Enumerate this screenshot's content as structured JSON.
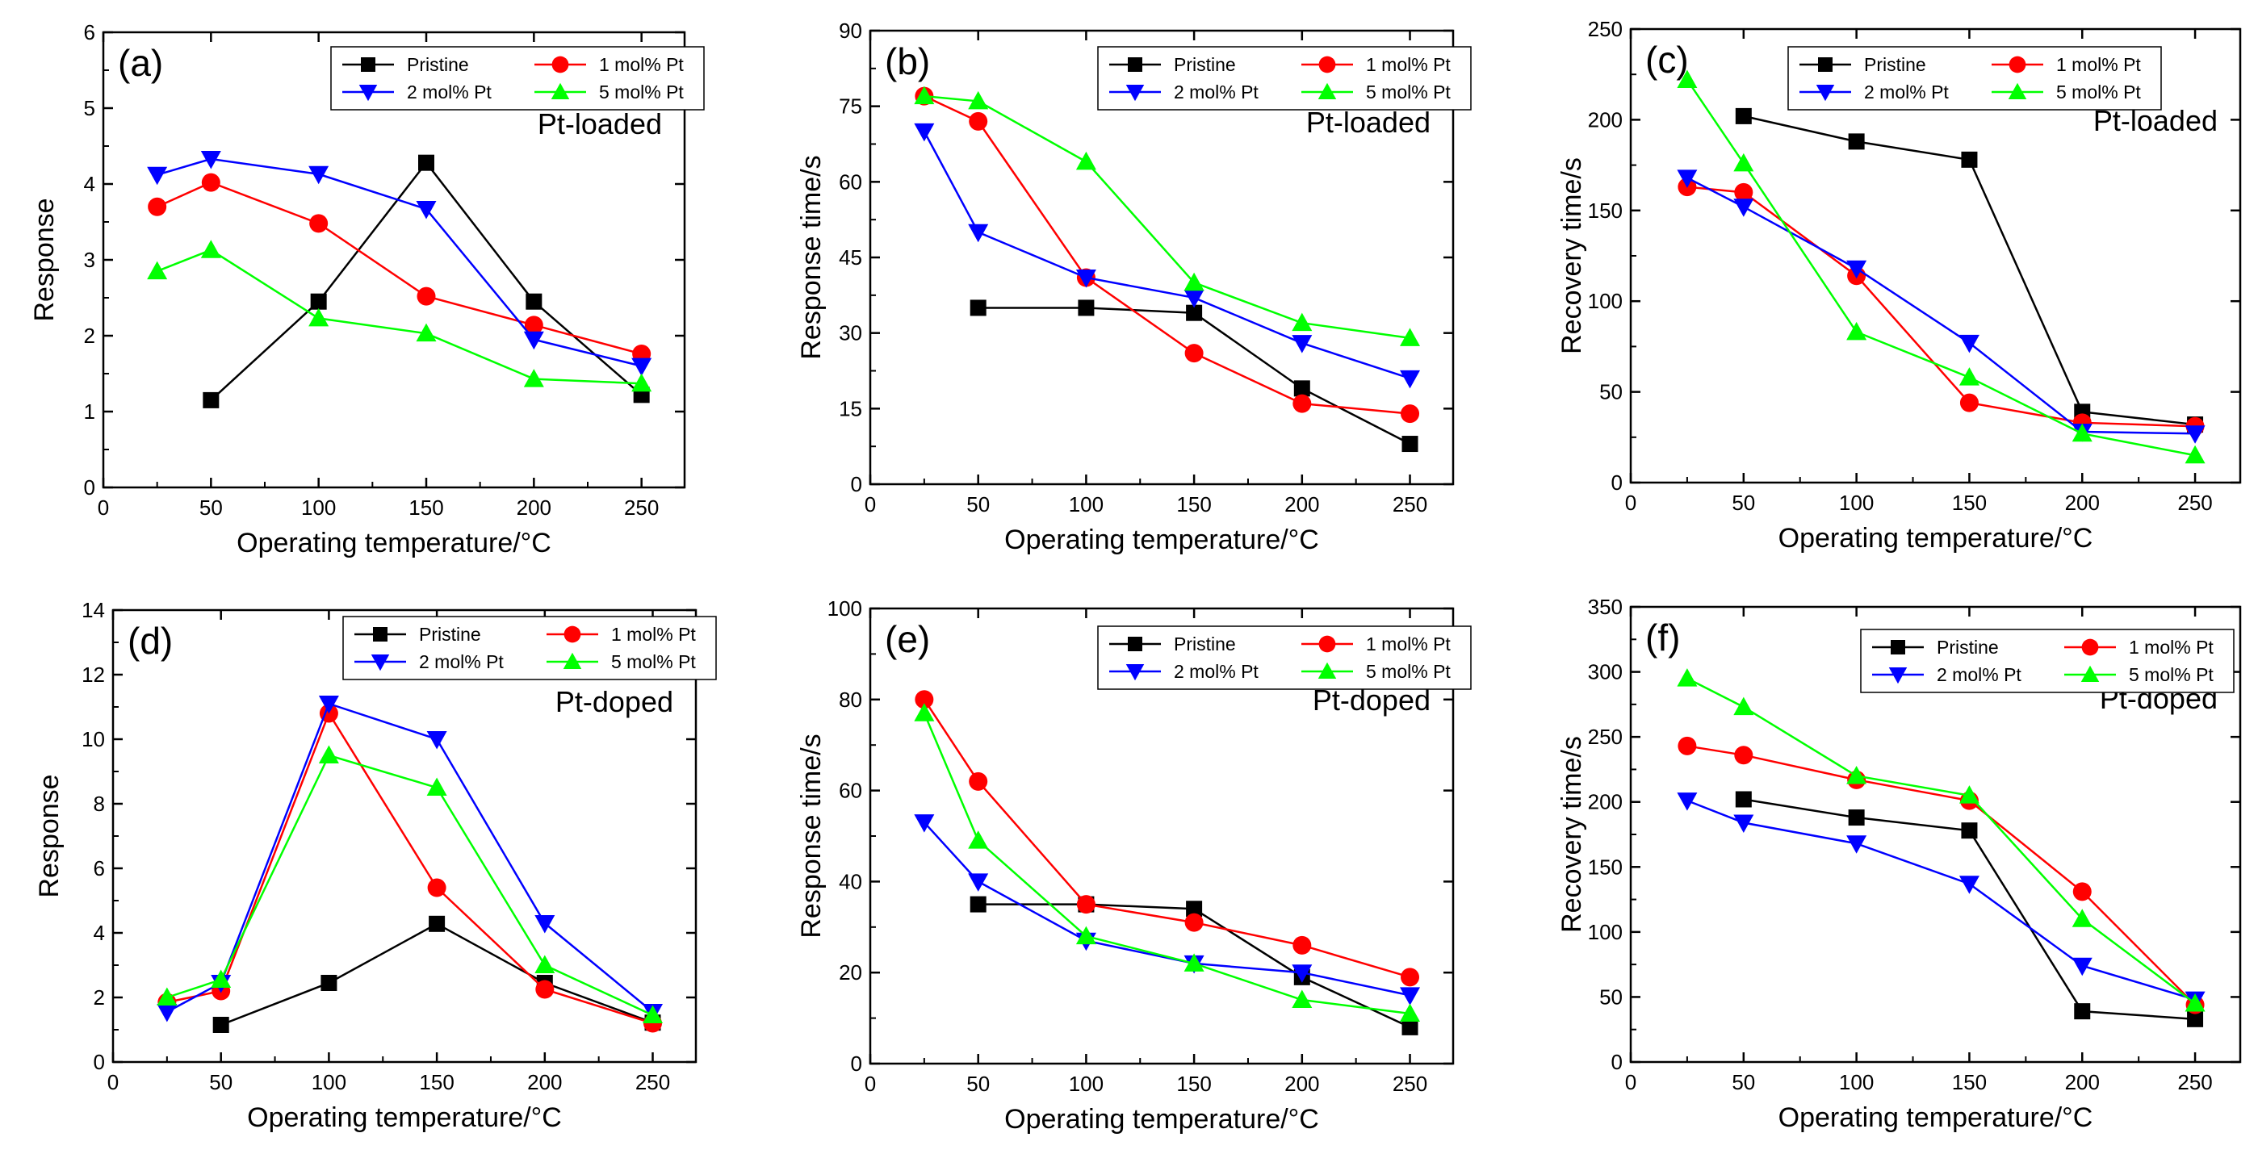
{
  "chart_data": [
    {
      "type": "line",
      "panel_label": "(a)",
      "annotation": "Pt-loaded",
      "xlabel": "Operating temperature/°C",
      "ylabel": "Response",
      "xlim": [
        0,
        270
      ],
      "ylim": [
        0,
        6
      ],
      "xticks": [
        0,
        50,
        100,
        150,
        200,
        250
      ],
      "yticks": [
        0,
        1,
        2,
        3,
        4,
        5,
        6
      ],
      "series": [
        {
          "name": "Pristine",
          "color": "#000000",
          "marker": "square",
          "x": [
            50,
            100,
            150,
            200,
            250
          ],
          "y": [
            1.15,
            2.45,
            4.28,
            2.45,
            1.22
          ]
        },
        {
          "name": "1 mol% Pt",
          "color": "#ff0000",
          "marker": "circle",
          "x": [
            25,
            50,
            100,
            150,
            200,
            250
          ],
          "y": [
            3.7,
            4.02,
            3.48,
            2.52,
            2.14,
            1.76
          ]
        },
        {
          "name": "2 mol% Pt",
          "color": "#0000ff",
          "marker": "triangle-down",
          "x": [
            25,
            50,
            100,
            150,
            200,
            250
          ],
          "y": [
            4.12,
            4.33,
            4.13,
            3.67,
            1.95,
            1.6
          ]
        },
        {
          "name": "5 mol% Pt",
          "color": "#00ff00",
          "marker": "triangle-up",
          "x": [
            25,
            50,
            100,
            150,
            200,
            250
          ],
          "y": [
            2.85,
            3.13,
            2.23,
            2.03,
            1.43,
            1.37
          ]
        }
      ]
    },
    {
      "type": "line",
      "panel_label": "(b)",
      "annotation": "Pt-loaded",
      "xlabel": "Operating temperature/°C",
      "ylabel": "Response time/s",
      "xlim": [
        0,
        270
      ],
      "ylim": [
        0,
        90
      ],
      "xticks": [
        0,
        50,
        100,
        150,
        200,
        250
      ],
      "yticks": [
        0,
        15,
        30,
        45,
        60,
        75,
        90
      ],
      "series": [
        {
          "name": "Pristine",
          "color": "#000000",
          "marker": "square",
          "x": [
            50,
            100,
            150,
            200,
            250
          ],
          "y": [
            35,
            35,
            34,
            19,
            8
          ]
        },
        {
          "name": "1 mol% Pt",
          "color": "#ff0000",
          "marker": "circle",
          "x": [
            25,
            50,
            100,
            150,
            200,
            250
          ],
          "y": [
            77,
            72,
            41,
            26,
            16,
            14
          ]
        },
        {
          "name": "2 mol% Pt",
          "color": "#0000ff",
          "marker": "triangle-down",
          "x": [
            25,
            50,
            100,
            150,
            200,
            250
          ],
          "y": [
            70,
            50,
            41,
            37,
            28,
            21
          ]
        },
        {
          "name": "5 mol% Pt",
          "color": "#00ff00",
          "marker": "triangle-up",
          "x": [
            25,
            50,
            100,
            150,
            200,
            250
          ],
          "y": [
            77,
            76,
            64,
            40,
            32,
            29
          ]
        }
      ]
    },
    {
      "type": "line",
      "panel_label": "(c)",
      "annotation": "Pt-loaded",
      "xlabel": "Operating temperature/°C",
      "ylabel": "Recovery time/s",
      "xlim": [
        0,
        270
      ],
      "ylim": [
        0,
        250
      ],
      "xticks": [
        0,
        50,
        100,
        150,
        200,
        250
      ],
      "yticks": [
        0,
        50,
        100,
        150,
        200,
        250
      ],
      "series": [
        {
          "name": "Pristine",
          "color": "#000000",
          "marker": "square",
          "x": [
            50,
            100,
            150,
            200,
            250
          ],
          "y": [
            202,
            188,
            178,
            39,
            32
          ]
        },
        {
          "name": "1 mol% Pt",
          "color": "#ff0000",
          "marker": "circle",
          "x": [
            25,
            50,
            100,
            150,
            200,
            250
          ],
          "y": [
            163,
            160,
            114,
            44,
            33,
            31
          ]
        },
        {
          "name": "2 mol% Pt",
          "color": "#0000ff",
          "marker": "triangle-down",
          "x": [
            25,
            50,
            100,
            150,
            200,
            250
          ],
          "y": [
            168,
            152,
            118,
            77,
            28,
            27
          ]
        },
        {
          "name": "5 mol% Pt",
          "color": "#00ff00",
          "marker": "triangle-up",
          "x": [
            25,
            50,
            100,
            150,
            200,
            250
          ],
          "y": [
            222,
            176,
            83,
            58,
            27,
            15
          ]
        }
      ]
    },
    {
      "type": "line",
      "panel_label": "(d)",
      "annotation": "Pt-doped",
      "xlabel": "Operating temperature/°C",
      "ylabel": "Response",
      "xlim": [
        0,
        270
      ],
      "ylim": [
        0,
        14
      ],
      "xticks": [
        0,
        50,
        100,
        150,
        200,
        250
      ],
      "yticks": [
        0,
        2,
        4,
        6,
        8,
        10,
        12,
        14
      ],
      "series": [
        {
          "name": "Pristine",
          "color": "#000000",
          "marker": "square",
          "x": [
            50,
            100,
            150,
            200,
            250
          ],
          "y": [
            1.15,
            2.45,
            4.28,
            2.45,
            1.22
          ]
        },
        {
          "name": "1 mol% Pt",
          "color": "#ff0000",
          "marker": "circle",
          "x": [
            25,
            50,
            100,
            150,
            200,
            250
          ],
          "y": [
            1.85,
            2.2,
            10.8,
            5.4,
            2.25,
            1.2
          ]
        },
        {
          "name": "2 mol% Pt",
          "color": "#0000ff",
          "marker": "triangle-down",
          "x": [
            25,
            50,
            100,
            150,
            200,
            250
          ],
          "y": [
            1.55,
            2.45,
            11.1,
            10.0,
            4.3,
            1.55
          ]
        },
        {
          "name": "5 mol% Pt",
          "color": "#00ff00",
          "marker": "triangle-up",
          "x": [
            25,
            50,
            100,
            150,
            200,
            250
          ],
          "y": [
            2.0,
            2.55,
            9.5,
            8.5,
            3.0,
            1.45
          ]
        }
      ]
    },
    {
      "type": "line",
      "panel_label": "(e)",
      "annotation": "Pt-doped",
      "xlabel": "Operating temperature/°C",
      "ylabel": "Response time/s",
      "xlim": [
        0,
        270
      ],
      "ylim": [
        0,
        100
      ],
      "xticks": [
        0,
        50,
        100,
        150,
        200,
        250
      ],
      "yticks": [
        0,
        20,
        40,
        60,
        80,
        100
      ],
      "series": [
        {
          "name": "Pristine",
          "color": "#000000",
          "marker": "square",
          "x": [
            50,
            100,
            150,
            200,
            250
          ],
          "y": [
            35,
            35,
            34,
            19,
            8
          ]
        },
        {
          "name": "1 mol% Pt",
          "color": "#ff0000",
          "marker": "circle",
          "x": [
            25,
            50,
            100,
            150,
            200,
            250
          ],
          "y": [
            80,
            62,
            35,
            31,
            26,
            19
          ]
        },
        {
          "name": "2 mol% Pt",
          "color": "#0000ff",
          "marker": "triangle-down",
          "x": [
            25,
            50,
            100,
            150,
            200,
            250
          ],
          "y": [
            53,
            40,
            27,
            22,
            20,
            15
          ]
        },
        {
          "name": "5 mol% Pt",
          "color": "#00ff00",
          "marker": "triangle-up",
          "x": [
            25,
            50,
            100,
            150,
            200,
            250
          ],
          "y": [
            77,
            49,
            28,
            22,
            14,
            11
          ]
        }
      ]
    },
    {
      "type": "line",
      "panel_label": "(f)",
      "annotation": "Pt-doped",
      "xlabel": "Operating temperature/°C",
      "ylabel": "Recovery time/s",
      "xlim": [
        0,
        270
      ],
      "ylim": [
        0,
        350
      ],
      "xticks": [
        0,
        50,
        100,
        150,
        200,
        250
      ],
      "yticks": [
        0,
        50,
        100,
        150,
        200,
        250,
        300,
        350
      ],
      "series": [
        {
          "name": "Pristine",
          "color": "#000000",
          "marker": "square",
          "x": [
            50,
            100,
            150,
            200,
            250
          ],
          "y": [
            202,
            188,
            178,
            39,
            33
          ]
        },
        {
          "name": "1 mol% Pt",
          "color": "#ff0000",
          "marker": "circle",
          "x": [
            25,
            50,
            100,
            150,
            200,
            250
          ],
          "y": [
            243,
            236,
            217,
            201,
            131,
            44
          ]
        },
        {
          "name": "2 mol% Pt",
          "color": "#0000ff",
          "marker": "triangle-down",
          "x": [
            25,
            50,
            100,
            150,
            200,
            250
          ],
          "y": [
            201,
            184,
            168,
            137,
            74,
            48
          ]
        },
        {
          "name": "5 mol% Pt",
          "color": "#00ff00",
          "marker": "triangle-up",
          "x": [
            25,
            50,
            100,
            150,
            200,
            250
          ],
          "y": [
            295,
            273,
            220,
            205,
            110,
            45
          ]
        }
      ]
    }
  ]
}
